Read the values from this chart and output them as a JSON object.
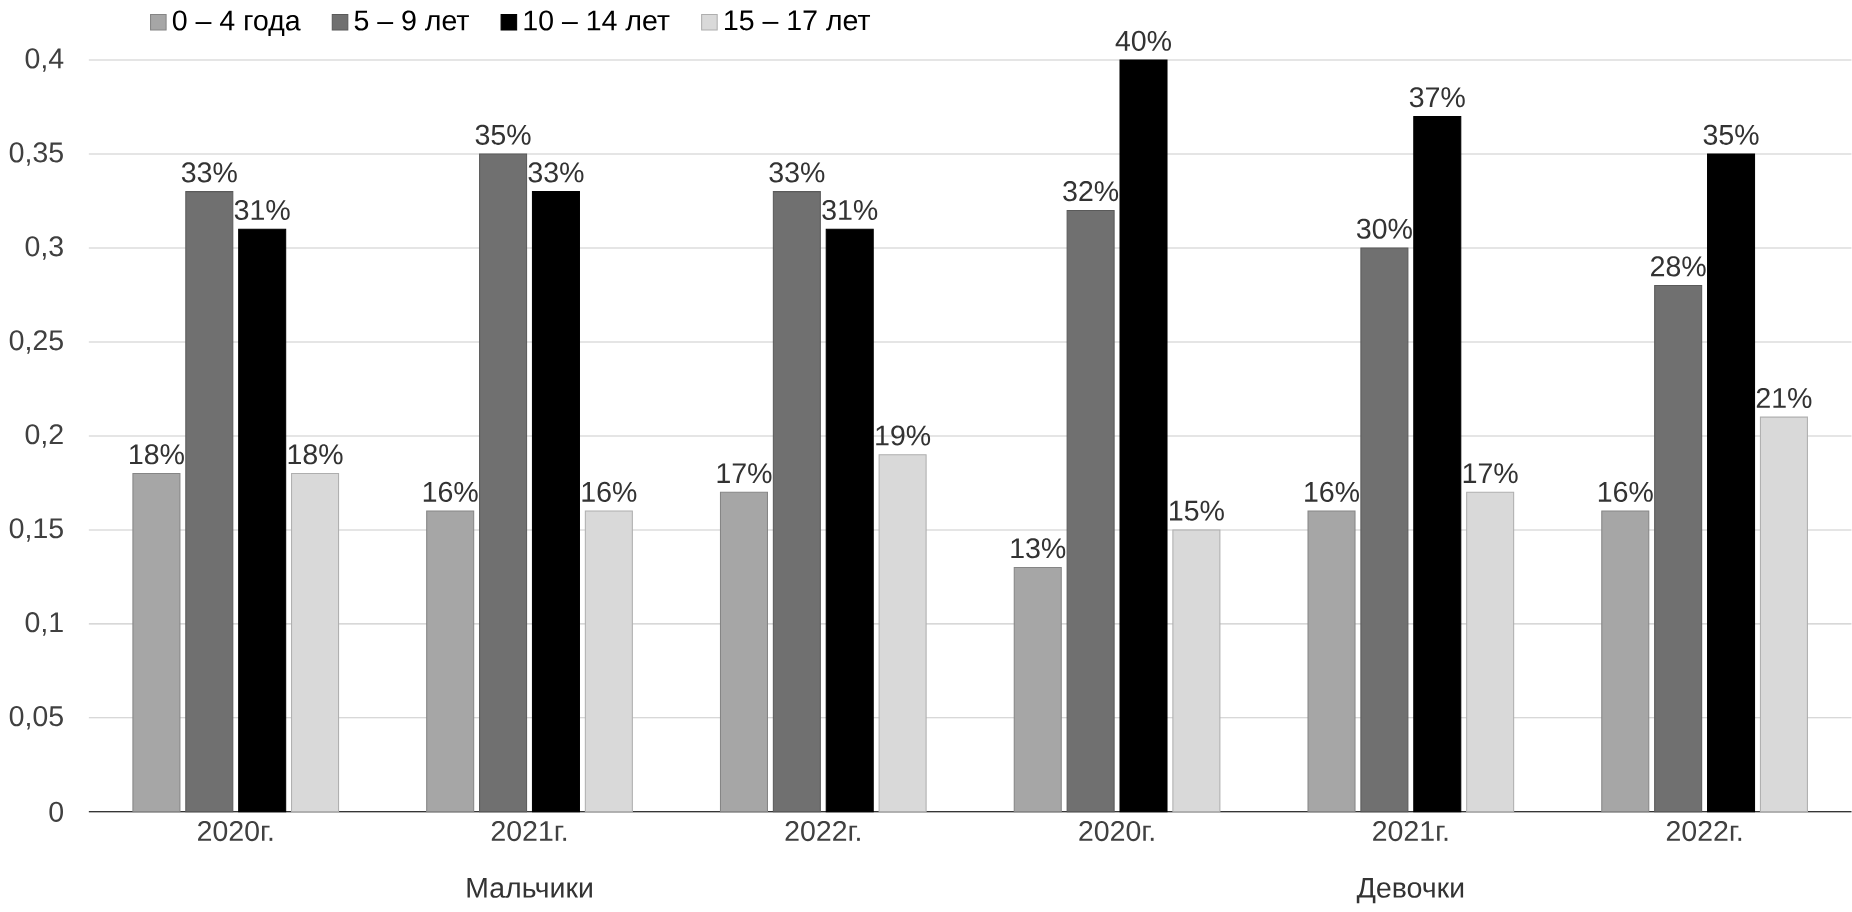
{
  "chart_data": {
    "type": "bar",
    "categories": [
      "2020г.",
      "2021г.",
      "2022г.",
      "2020г.",
      "2021г.",
      "2022г."
    ],
    "annotations": [
      "Мальчики",
      "Девочки"
    ],
    "series": [
      {
        "name": "0 – 4 года",
        "color": "#a6a6a6",
        "values": [
          0.18,
          0.16,
          0.17,
          0.13,
          0.16,
          0.16
        ],
        "value_labels": [
          "18%",
          "16%",
          "17%",
          "13%",
          "16%",
          "16%"
        ]
      },
      {
        "name": "5 – 9 лет",
        "color": "#707070",
        "values": [
          0.33,
          0.35,
          0.33,
          0.32,
          0.3,
          0.28
        ],
        "value_labels": [
          "33%",
          "35%",
          "33%",
          "32%",
          "30%",
          "28%"
        ]
      },
      {
        "name": "10 – 14 лет",
        "color": "#000000",
        "values": [
          0.31,
          0.33,
          0.31,
          0.4,
          0.37,
          0.35
        ],
        "value_labels": [
          "31%",
          "33%",
          "31%",
          "40%",
          "37%",
          "35%"
        ]
      },
      {
        "name": "15 – 17 лет",
        "color": "#d9d9d9",
        "values": [
          0.18,
          0.16,
          0.19,
          0.15,
          0.17,
          0.21
        ],
        "value_labels": [
          "18%",
          "16%",
          "19%",
          "15%",
          "17%",
          "21%"
        ]
      }
    ],
    "ylim": [
      0,
      0.4
    ],
    "yticks": [
      0,
      {
        "value": 0.05,
        "label": "0,05"
      },
      {
        "value": 0.1,
        "label": "0,1"
      },
      {
        "value": 0.15,
        "label": "0,15"
      },
      {
        "value": 0.2,
        "label": "0,2"
      },
      {
        "value": 0.25,
        "label": "0,25"
      },
      {
        "value": 0.3,
        "label": "0,3"
      },
      {
        "value": 0.35,
        "label": "0,35"
      },
      {
        "value": 0.4,
        "label": "0,4"
      }
    ],
    "grid": "y",
    "legend": "top left"
  }
}
